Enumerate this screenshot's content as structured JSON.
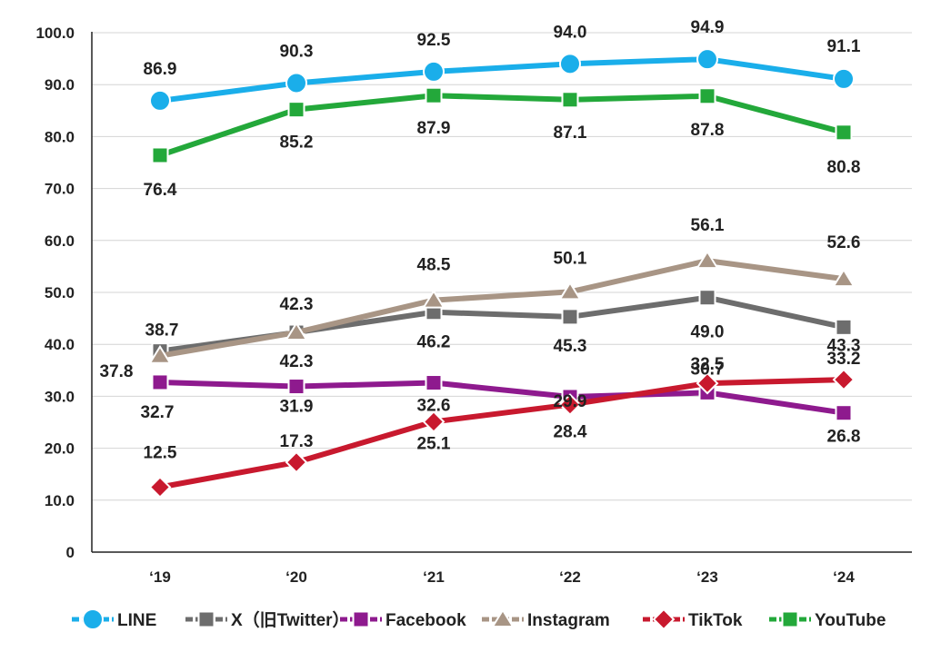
{
  "chart_data": {
    "type": "line",
    "title": "",
    "xlabel": "",
    "ylabel": "",
    "categories": [
      "‘19",
      "‘20",
      "‘21",
      "‘22",
      "‘23",
      "‘24"
    ],
    "ylim": [
      0,
      100
    ],
    "yticks": [
      "0",
      "10.0",
      "20.0",
      "30.0",
      "40.0",
      "50.0",
      "60.0",
      "70.0",
      "80.0",
      "90.0",
      "100.0"
    ],
    "grid": true,
    "legend_position": "bottom",
    "series": [
      {
        "name": "LINE",
        "color": "#1aaeea",
        "marker": "circle",
        "values": [
          86.9,
          90.3,
          92.5,
          94.0,
          94.9,
          91.1
        ],
        "labels": [
          "86.9",
          "90.3",
          "92.5",
          "94.0",
          "94.9",
          "91.1"
        ]
      },
      {
        "name": "X（旧Twitter）",
        "color": "#6d6d6d",
        "marker": "square",
        "values": [
          38.7,
          42.3,
          46.2,
          45.3,
          49.0,
          43.3
        ],
        "labels": [
          "38.7",
          "42.3",
          "46.2",
          "45.3",
          "49.0",
          "43.3"
        ]
      },
      {
        "name": "Facebook",
        "color": "#8e1a8e",
        "marker": "square",
        "values": [
          32.7,
          31.9,
          32.6,
          29.9,
          30.7,
          26.8
        ],
        "labels": [
          "32.7",
          "31.9",
          "32.6",
          "29.9",
          "30.7",
          "26.8"
        ]
      },
      {
        "name": "Instagram",
        "color": "#a89585",
        "marker": "triangle",
        "values": [
          37.8,
          42.3,
          48.5,
          50.1,
          56.1,
          52.6
        ],
        "labels": [
          "37.8",
          "42.3",
          "48.5",
          "50.1",
          "56.1",
          "52.6"
        ]
      },
      {
        "name": "TikTok",
        "color": "#c8192e",
        "marker": "diamond",
        "values": [
          12.5,
          17.3,
          25.1,
          28.4,
          32.5,
          33.2
        ],
        "labels": [
          "12.5",
          "17.3",
          "25.1",
          "28.4",
          "32.5",
          "33.2"
        ]
      },
      {
        "name": "YouTube",
        "color": "#23a83a",
        "marker": "square",
        "values": [
          76.4,
          85.2,
          87.9,
          87.1,
          87.8,
          80.8
        ],
        "labels": [
          "76.4",
          "85.2",
          "87.9",
          "87.1",
          "87.8",
          "80.8"
        ]
      }
    ]
  }
}
